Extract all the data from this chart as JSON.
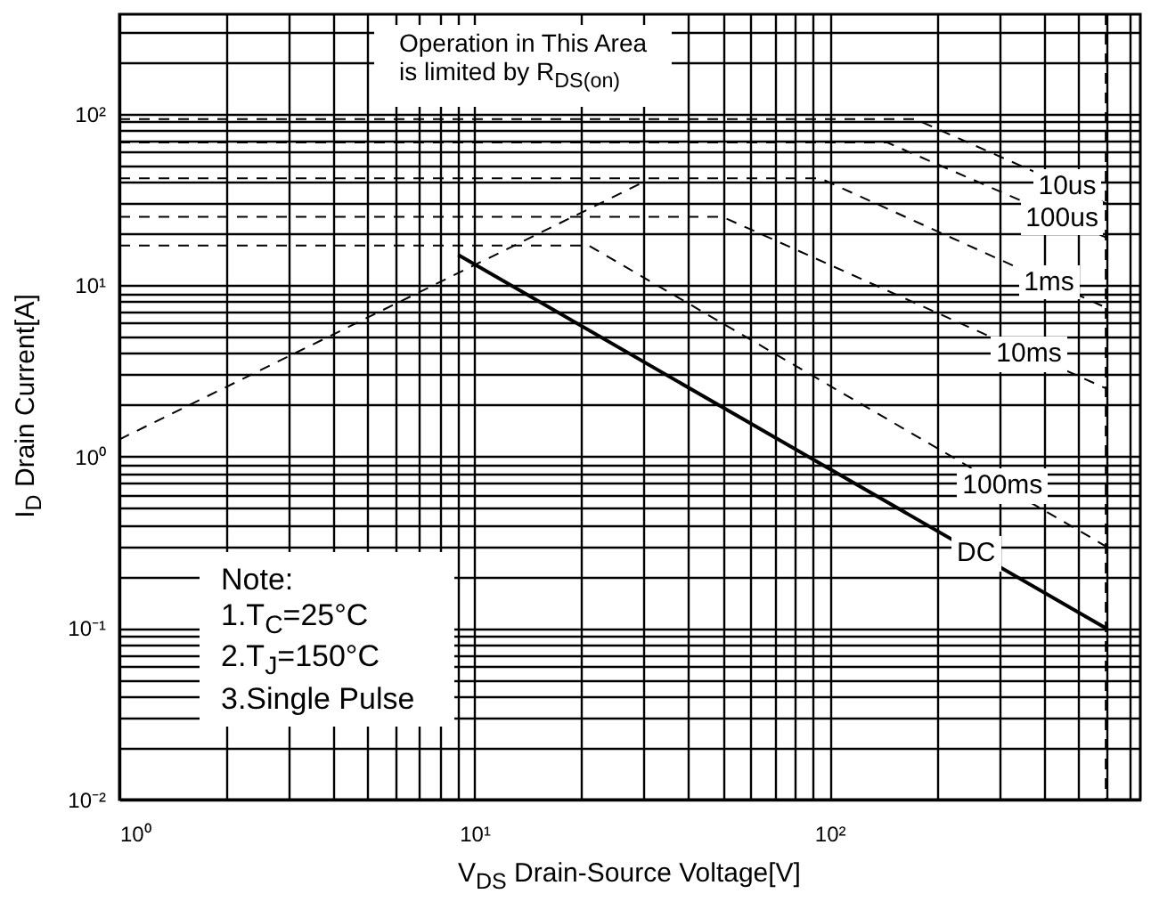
{
  "chart_data": {
    "type": "line",
    "xlabel": "V$_{DS}$ Drain-Source Voltage[V]",
    "ylabel": "I$_{D}$ Drain Current[A]",
    "log": "xy",
    "grid": true,
    "marker": "none",
    "xlim": [
      1,
      750
    ],
    "ylim": [
      0.01,
      380
    ],
    "xticks": [
      {
        "value": 1,
        "label": "10⁰"
      },
      {
        "value": 2,
        "label": null
      },
      {
        "value": 3,
        "label": null
      },
      {
        "value": 4,
        "label": null
      },
      {
        "value": 5,
        "label": null
      },
      {
        "value": 6,
        "label": null
      },
      {
        "value": 7,
        "label": null
      },
      {
        "value": 8,
        "label": null
      },
      {
        "value": 9,
        "label": null
      },
      {
        "value": 10,
        "label": "10¹"
      },
      {
        "value": 20,
        "label": null
      },
      {
        "value": 30,
        "label": null
      },
      {
        "value": 40,
        "label": null
      },
      {
        "value": 50,
        "label": null
      },
      {
        "value": 60,
        "label": null
      },
      {
        "value": 70,
        "label": null
      },
      {
        "value": 80,
        "label": null
      },
      {
        "value": 90,
        "label": null
      },
      {
        "value": 100,
        "label": "10²"
      },
      {
        "value": 200,
        "label": null
      },
      {
        "value": 300,
        "label": null
      },
      {
        "value": 400,
        "label": null
      },
      {
        "value": 500,
        "label": null
      },
      {
        "value": 600,
        "label": null
      },
      {
        "value": 700,
        "label": null
      }
    ],
    "yticks": [
      {
        "value": 0.01,
        "label": "10⁻²"
      },
      {
        "value": 0.02,
        "label": null
      },
      {
        "value": 0.03,
        "label": null
      },
      {
        "value": 0.04,
        "label": null
      },
      {
        "value": 0.05,
        "label": null
      },
      {
        "value": 0.06,
        "label": null
      },
      {
        "value": 0.07,
        "label": null
      },
      {
        "value": 0.08,
        "label": null
      },
      {
        "value": 0.09,
        "label": null
      },
      {
        "value": 0.1,
        "label": "10⁻¹"
      },
      {
        "value": 0.2,
        "label": null
      },
      {
        "value": 0.3,
        "label": null
      },
      {
        "value": 0.4,
        "label": null
      },
      {
        "value": 0.5,
        "label": null
      },
      {
        "value": 0.6,
        "label": null
      },
      {
        "value": 0.7,
        "label": null
      },
      {
        "value": 0.8,
        "label": null
      },
      {
        "value": 0.9,
        "label": null
      },
      {
        "value": 1,
        "label": "10⁰"
      },
      {
        "value": 2,
        "label": null
      },
      {
        "value": 3,
        "label": null
      },
      {
        "value": 4,
        "label": null
      },
      {
        "value": 5,
        "label": null
      },
      {
        "value": 6,
        "label": null
      },
      {
        "value": 7,
        "label": null
      },
      {
        "value": 8,
        "label": null
      },
      {
        "value": 9,
        "label": null
      },
      {
        "value": 10,
        "label": "10¹"
      },
      {
        "value": 20,
        "label": null
      },
      {
        "value": 30,
        "label": null
      },
      {
        "value": 40,
        "label": null
      },
      {
        "value": 50,
        "label": null
      },
      {
        "value": 60,
        "label": null
      },
      {
        "value": 70,
        "label": null
      },
      {
        "value": 80,
        "label": null
      },
      {
        "value": 90,
        "label": null
      },
      {
        "value": 100,
        "label": "10²"
      },
      {
        "value": 200,
        "label": null
      },
      {
        "value": 300,
        "label": null
      }
    ],
    "series": [
      {
        "color": "#000000",
        "line_style": "dashed",
        "x": [
          1,
          30
        ],
        "values": [
          1.26,
          40
        ]
      },
      {
        "name": "10us",
        "color": "#000000",
        "line_style": "dashed",
        "x": [
          1,
          174,
          600
        ],
        "values": [
          93,
          93,
          30
        ]
      },
      {
        "name": "100us",
        "color": "#000000",
        "line_style": "dashed",
        "x": [
          1,
          145,
          600
        ],
        "values": [
          68,
          68,
          19
        ]
      },
      {
        "name": "1ms",
        "color": "#000000",
        "line_style": "dashed",
        "x": [
          1,
          94,
          600
        ],
        "values": [
          42,
          42,
          7.4
        ]
      },
      {
        "name": "10ms",
        "color": "#000000",
        "line_style": "dashed",
        "x": [
          1,
          50,
          600
        ],
        "values": [
          25,
          25,
          2.5
        ]
      },
      {
        "name": "100ms",
        "color": "#000000",
        "line_style": "dashed",
        "x": [
          1,
          21,
          600
        ],
        "values": [
          17,
          17,
          0.3
        ]
      },
      {
        "name": "DC",
        "color": "#000000",
        "line_style": "solid",
        "x": [
          9,
          600
        ],
        "values": [
          15,
          0.1
        ]
      }
    ],
    "ref_lines": [
      {
        "axis": "x",
        "value": 600,
        "color": "#000000",
        "line_style": "dashed"
      }
    ],
    "annotations": [
      "Operation in This Area\nis limited by R$_{DS(on)}$",
      "Note:\n1.T$_{C}$=25°C\n2.T$_{J}$=150°C\n3.Single Pulse"
    ]
  }
}
